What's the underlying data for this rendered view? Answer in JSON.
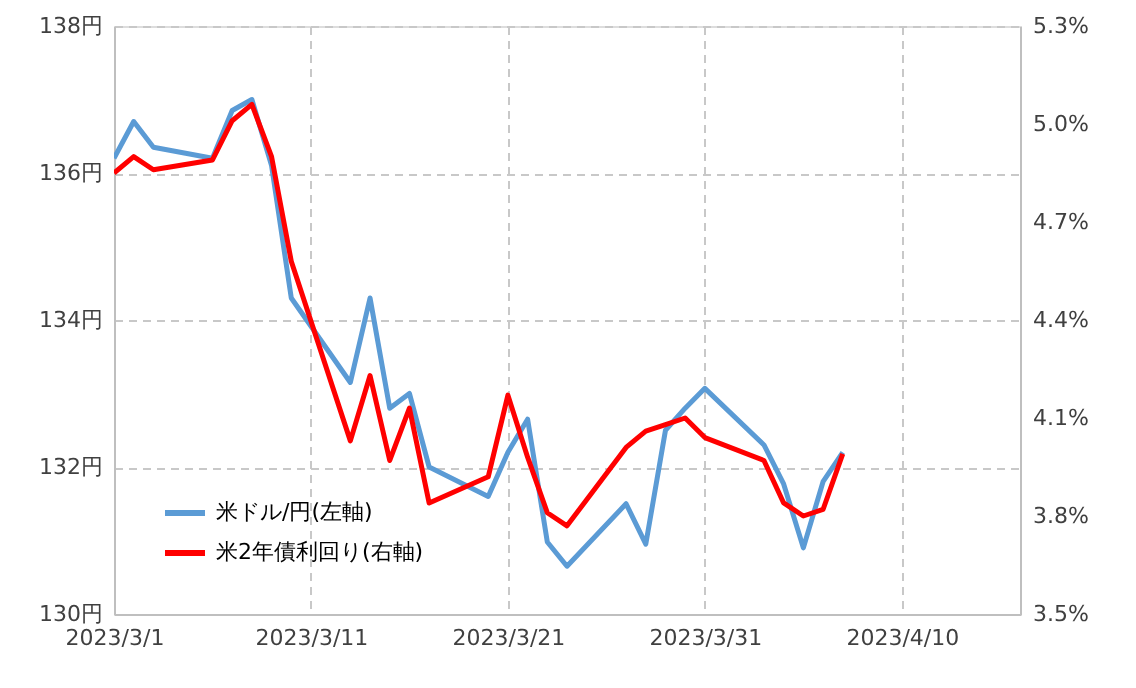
{
  "chart_data": {
    "type": "line",
    "x": [
      "2023-03-01",
      "2023-03-02",
      "2023-03-03",
      "2023-03-06",
      "2023-03-07",
      "2023-03-08",
      "2023-03-09",
      "2023-03-10",
      "2023-03-13",
      "2023-03-14",
      "2023-03-15",
      "2023-03-16",
      "2023-03-17",
      "2023-03-20",
      "2023-03-21",
      "2023-03-22",
      "2023-03-23",
      "2023-03-24",
      "2023-03-27",
      "2023-03-28",
      "2023-03-29",
      "2023-03-30",
      "2023-03-31",
      "2023-04-03",
      "2023-04-04",
      "2023-04-05",
      "2023-04-06",
      "2023-04-07"
    ],
    "series": [
      {
        "name": "米ドル/円(左軸)",
        "color": "#5b9bd5",
        "values": [
          136.2,
          136.7,
          136.35,
          136.2,
          136.85,
          137.0,
          136.1,
          134.3,
          133.15,
          134.3,
          132.8,
          133.0,
          132.0,
          131.6,
          132.2,
          132.65,
          130.98,
          130.65,
          131.5,
          130.95,
          132.5,
          132.8,
          133.07,
          132.3,
          131.77,
          130.9,
          131.8,
          132.2
        ]
      },
      {
        "name": "米2年債利回り(右軸)",
        "color": "#ff0000",
        "axis": "y2",
        "values": [
          4.85,
          4.9,
          4.86,
          4.89,
          5.01,
          5.06,
          4.9,
          4.58,
          4.03,
          4.23,
          3.97,
          4.13,
          3.84,
          3.92,
          4.17,
          3.98,
          3.81,
          3.77,
          4.01,
          4.06,
          4.08,
          4.1,
          4.04,
          3.97,
          3.84,
          3.8,
          3.82,
          3.99
        ]
      }
    ],
    "xlim": [
      "2023-03-01",
      "2023-04-16"
    ],
    "xticks": [
      {
        "value": "2023-03-01",
        "label": "2023/3/1"
      },
      {
        "value": "2023-03-11",
        "label": "2023/3/11"
      },
      {
        "value": "2023-03-21",
        "label": "2023/3/21"
      },
      {
        "value": "2023-03-31",
        "label": "2023/3/31"
      },
      {
        "value": "2023-04-10",
        "label": "2023/4/10"
      }
    ],
    "ylim": [
      130,
      138
    ],
    "yticks": [
      {
        "value": 130,
        "label": "130円"
      },
      {
        "value": 132,
        "label": "132円"
      },
      {
        "value": 134,
        "label": "134円"
      },
      {
        "value": 136,
        "label": "136円"
      },
      {
        "value": 138,
        "label": "138円"
      }
    ],
    "y2lim": [
      3.5,
      5.3
    ],
    "y2ticks": [
      {
        "value": 3.5,
        "label": "3.5%"
      },
      {
        "value": 3.8,
        "label": "3.8%"
      },
      {
        "value": 4.1,
        "label": "4.1%"
      },
      {
        "value": 4.4,
        "label": "4.4%"
      },
      {
        "value": 4.7,
        "label": "4.7%"
      },
      {
        "value": 5.0,
        "label": "5.0%"
      },
      {
        "value": 5.3,
        "label": "5.3%"
      }
    ],
    "grid": true,
    "legend": "bottom left",
    "line_style": "solid",
    "marker": "none"
  }
}
